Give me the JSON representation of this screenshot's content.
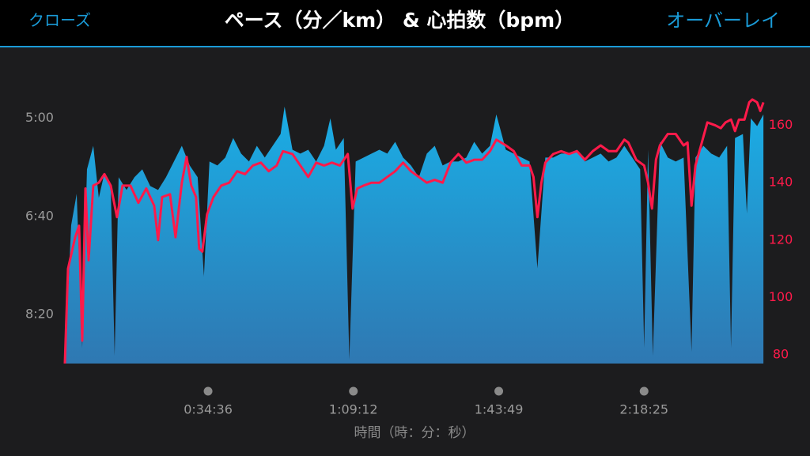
{
  "header": {
    "close": "クローズ",
    "overlay": "オーバーレイ"
  },
  "chart_data": {
    "type": "area",
    "title": "ペース（分／km） & 心拍数（bpm）",
    "x_label": "時間（時：分：秒）",
    "xlim": [
      30,
      10020
    ],
    "xticks": [
      {
        "value": 2076,
        "label": "0:34:36"
      },
      {
        "value": 4152,
        "label": "1:09:12"
      },
      {
        "value": 6229,
        "label": "1:43:49"
      },
      {
        "value": 8305,
        "label": "2:18:25"
      }
    ],
    "ylim": [
      550,
      272
    ],
    "yticks": [
      {
        "value": 300,
        "label": "5:00"
      },
      {
        "value": 400,
        "label": "6:40"
      },
      {
        "value": 500,
        "label": "8:20"
      }
    ],
    "y2lim": [
      77,
      172
    ],
    "y2ticks": [
      80,
      100,
      120,
      140,
      160
    ],
    "y2_color": "#ff1a4a",
    "series": [
      {
        "type": "area",
        "color": "#1aaee6",
        "axis": "y",
        "x": [
          30,
          120,
          199,
          278,
          346,
          436,
          515,
          595,
          685,
          741,
          798,
          911,
          1024,
          1136,
          1249,
          1362,
          1475,
          1588,
          1701,
          1814,
          1927,
          2017,
          2096,
          2209,
          2322,
          2435,
          2548,
          2661,
          2773,
          2886,
          2999,
          3112,
          3169,
          3282,
          3394,
          3507,
          3620,
          3733,
          3823,
          3902,
          4015,
          4094,
          4185,
          4298,
          4411,
          4523,
          4636,
          4749,
          4862,
          4975,
          5088,
          5201,
          5314,
          5427,
          5540,
          5652,
          5765,
          5878,
          5991,
          6104,
          6194,
          6330,
          6443,
          6556,
          6669,
          6781,
          6894,
          7007,
          7120,
          7233,
          7346,
          7459,
          7572,
          7685,
          7798,
          7910,
          8023,
          8136,
          8249,
          8306,
          8362,
          8430,
          8531,
          8644,
          8757,
          8870,
          8983,
          9039,
          9152,
          9265,
          9378,
          9491,
          9547,
          9604,
          9717,
          9773,
          9830,
          9920,
          10010
        ],
        "values": [
          550,
          409,
          377,
          534,
          352,
          328,
          381,
          356,
          369,
          542,
          360,
          373,
          360,
          352,
          369,
          373,
          360,
          344,
          328,
          348,
          360,
          461,
          344,
          348,
          340,
          320,
          336,
          344,
          328,
          340,
          328,
          316,
          288,
          332,
          336,
          332,
          344,
          328,
          300,
          332,
          320,
          546,
          344,
          340,
          336,
          332,
          336,
          324,
          340,
          348,
          360,
          336,
          328,
          348,
          344,
          344,
          340,
          324,
          336,
          328,
          296,
          332,
          336,
          340,
          344,
          453,
          340,
          340,
          336,
          336,
          332,
          344,
          340,
          336,
          344,
          340,
          328,
          340,
          352,
          534,
          332,
          542,
          324,
          340,
          344,
          340,
          538,
          340,
          328,
          336,
          340,
          328,
          534,
          320,
          316,
          397,
          300,
          308,
          296
        ]
      },
      {
        "type": "line",
        "color": "#ff1a4a",
        "axis": "y2",
        "x": [
          30,
          75,
          177,
          233,
          278,
          324,
          369,
          436,
          515,
          595,
          685,
          775,
          854,
          967,
          1080,
          1193,
          1306,
          1362,
          1419,
          1532,
          1611,
          1701,
          1769,
          1836,
          1904,
          1949,
          1994,
          2062,
          2153,
          2265,
          2378,
          2491,
          2604,
          2717,
          2830,
          2943,
          3056,
          3146,
          3282,
          3394,
          3507,
          3620,
          3733,
          3846,
          3959,
          4072,
          4140,
          4207,
          4298,
          4411,
          4523,
          4636,
          4749,
          4862,
          4975,
          5088,
          5201,
          5314,
          5427,
          5540,
          5652,
          5765,
          5878,
          5991,
          6104,
          6194,
          6330,
          6443,
          6556,
          6669,
          6725,
          6781,
          6838,
          6894,
          7007,
          7120,
          7233,
          7346,
          7459,
          7572,
          7685,
          7798,
          7910,
          8023,
          8080,
          8193,
          8306,
          8362,
          8418,
          8475,
          8531,
          8644,
          8757,
          8870,
          8926,
          8983,
          9039,
          9096,
          9209,
          9322,
          9401,
          9468,
          9547,
          9604,
          9660,
          9739,
          9807,
          9852,
          9920,
          9965,
          10010
        ],
        "values": [
          77,
          110,
          121,
          125,
          85,
          138,
          113,
          139,
          140,
          143,
          139,
          128,
          139,
          139,
          133,
          138,
          132,
          120,
          135,
          136,
          121,
          140,
          149,
          139,
          135,
          117,
          116,
          129,
          135,
          139,
          140,
          144,
          143,
          146,
          147,
          144,
          146,
          151,
          150,
          146,
          142,
          147,
          146,
          147,
          146,
          150,
          131,
          138,
          139,
          140,
          140,
          142,
          144,
          147,
          144,
          142,
          140,
          141,
          140,
          147,
          150,
          147,
          148,
          148,
          151,
          155,
          153,
          151,
          146,
          146,
          142,
          128,
          140,
          147,
          150,
          151,
          150,
          151,
          148,
          151,
          153,
          151,
          151,
          155,
          154,
          148,
          146,
          140,
          131,
          148,
          153,
          157,
          157,
          153,
          154,
          132,
          146,
          151,
          161,
          160,
          159,
          161,
          162,
          158,
          162,
          162,
          168,
          169,
          168,
          165,
          168
        ]
      }
    ]
  }
}
